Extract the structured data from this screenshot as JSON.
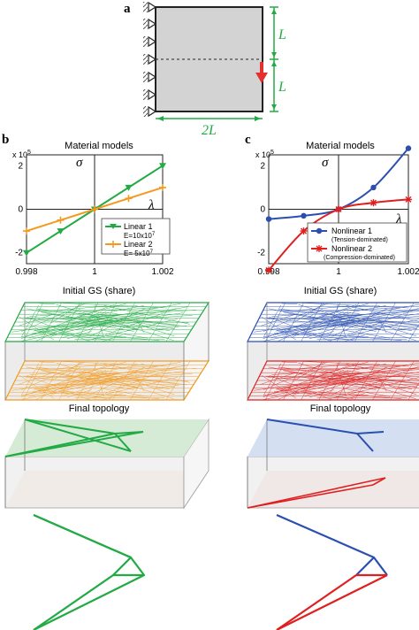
{
  "panel_a": {
    "label": "a",
    "dim_vertical_top": "L",
    "dim_vertical_bottom": "L",
    "dim_horizontal": "2L",
    "accent_green": "#22aa44",
    "load_color": "#e53030"
  },
  "panel_b": {
    "label": "b",
    "title": "Material models",
    "exponent_label": "x 10",
    "exponent_sup": "5",
    "sigma_symbol": "σ",
    "lambda_symbol": "λ",
    "legend": [
      {
        "name": "Linear 1",
        "detail": "E=10x10",
        "sup": "7"
      },
      {
        "name": "Linear 2",
        "detail": "E= 5x10",
        "sup": "7"
      }
    ],
    "gs_title": "Initial GS (share)",
    "final_title": "Final topology"
  },
  "panel_c": {
    "label": "c",
    "title": "Material models",
    "exponent_label": "x 10",
    "exponent_sup": "5",
    "sigma_symbol": "σ",
    "lambda_symbol": "λ",
    "legend": [
      {
        "name": "Nonlinear 1",
        "detail": "(Tension-dominated)"
      },
      {
        "name": "Nonlinear 2",
        "detail": "(Compression-dominated)"
      }
    ],
    "gs_title": "Initial GS (share)",
    "final_title": "Final topology"
  },
  "chart_data": [
    {
      "type": "line",
      "title": "Material models",
      "x_ticks": [
        "0.998",
        "1",
        "1.002"
      ],
      "y_ticks": [
        "2",
        "0",
        "-2"
      ],
      "xlim": [
        0.998,
        1.002
      ],
      "ylim": [
        -2.5,
        2.5
      ],
      "series": [
        {
          "name": "Linear 1",
          "color": "#22aa44",
          "marker": "triangle-down",
          "x": [
            0.998,
            0.999,
            1.0,
            1.001,
            1.002
          ],
          "y": [
            -2.0,
            -1.0,
            0.0,
            1.0,
            2.0
          ]
        },
        {
          "name": "Linear 2",
          "color": "#f39a1e",
          "marker": "plus",
          "x": [
            0.998,
            0.999,
            1.0,
            1.001,
            1.002
          ],
          "y": [
            -1.0,
            -0.5,
            0.0,
            0.5,
            1.0
          ]
        }
      ]
    },
    {
      "type": "line",
      "title": "Material models",
      "x_ticks": [
        "0.998",
        "1",
        "1.002"
      ],
      "y_ticks": [
        "2",
        "0",
        "-2"
      ],
      "xlim": [
        0.998,
        1.002
      ],
      "ylim": [
        -2.5,
        2.5
      ],
      "series": [
        {
          "name": "Nonlinear 1",
          "color": "#2a4fb0",
          "marker": "circle",
          "x": [
            0.998,
            0.999,
            1.0,
            1.001,
            1.002
          ],
          "y": [
            -0.45,
            -0.3,
            0.0,
            1.0,
            2.8
          ]
        },
        {
          "name": "Nonlinear 2",
          "color": "#e02020",
          "marker": "star",
          "x": [
            0.998,
            0.999,
            1.0,
            1.001,
            1.002
          ],
          "y": [
            -2.8,
            -1.0,
            0.0,
            0.3,
            0.45
          ]
        }
      ]
    }
  ]
}
